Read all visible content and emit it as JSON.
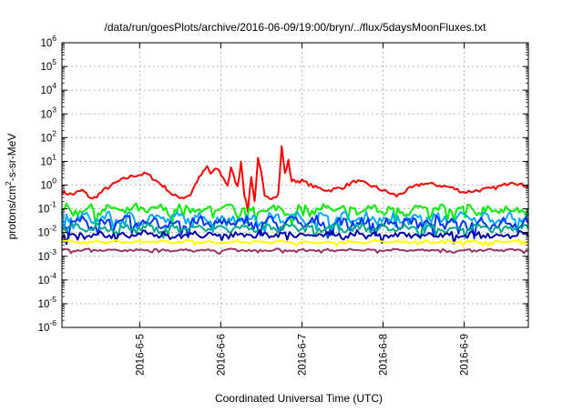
{
  "chart_data": {
    "type": "line",
    "title": "/data/run/goesPlots/archive/2016-06-09/19:00/bryn/../flux/5daysMoonFluxes.txt",
    "xlabel": "Coordinated Universal Time (UTC)",
    "ylabel": "protons/cm²-s-sr-MeV",
    "ylabel_parts": {
      "pre": "protons/cm",
      "sup": "2",
      "post": "-s-sr-MeV"
    },
    "y_scale": "log",
    "ylim": [
      1e-06,
      1000000.0
    ],
    "y_ticks": [
      {
        "base": "10",
        "exp": "-6",
        "value": 1e-06
      },
      {
        "base": "10",
        "exp": "-5",
        "value": 1e-05
      },
      {
        "base": "10",
        "exp": "-4",
        "value": 0.0001
      },
      {
        "base": "10",
        "exp": "-3",
        "value": 0.001
      },
      {
        "base": "10",
        "exp": "-2",
        "value": 0.01
      },
      {
        "base": "10",
        "exp": "-1",
        "value": 0.1
      },
      {
        "base": "10",
        "exp": "0",
        "value": 1.0
      },
      {
        "base": "10",
        "exp": "1",
        "value": 10.0
      },
      {
        "base": "10",
        "exp": "2",
        "value": 100.0
      },
      {
        "base": "10",
        "exp": "3",
        "value": 1000.0
      },
      {
        "base": "10",
        "exp": "4",
        "value": 10000.0
      },
      {
        "base": "10",
        "exp": "5",
        "value": 100000.0
      },
      {
        "base": "10",
        "exp": "6",
        "value": 1000000.0
      }
    ],
    "xlim": [
      "2016-06-04 01:00",
      "2016-06-09 19:00"
    ],
    "x_ticks": [
      {
        "label": "2016-6-5",
        "date": "2016-06-05 00:00"
      },
      {
        "label": "2016-6-6",
        "date": "2016-06-06 00:00"
      },
      {
        "label": "2016-6-7",
        "date": "2016-06-07 00:00"
      },
      {
        "label": "2016-6-8",
        "date": "2016-06-08 00:00"
      },
      {
        "label": "2016-6-9",
        "date": "2016-06-09 00:00"
      }
    ],
    "grid": true,
    "legend": "none",
    "series": [
      {
        "color": "#ff0000",
        "points": [
          [
            "2016-06-04 01:00",
            0.5
          ],
          [
            "2016-06-04 04:00",
            0.4
          ],
          [
            "2016-06-04 07:00",
            0.6
          ],
          [
            "2016-06-04 10:00",
            0.25
          ],
          [
            "2016-06-04 14:00",
            0.7
          ],
          [
            "2016-06-04 18:00",
            1.5
          ],
          [
            "2016-06-04 22:00",
            2.5
          ],
          [
            "2016-06-05 02:00",
            3.0
          ],
          [
            "2016-06-05 05:00",
            1.5
          ],
          [
            "2016-06-05 08:00",
            0.7
          ],
          [
            "2016-06-05 10:00",
            0.35
          ],
          [
            "2016-06-05 13:00",
            0.3
          ],
          [
            "2016-06-05 15:00",
            0.4
          ],
          [
            "2016-06-05 17:00",
            1.5
          ],
          [
            "2016-06-05 20:00",
            6.0
          ],
          [
            "2016-06-05 21:00",
            3.0
          ],
          [
            "2016-06-05 23:00",
            5.0
          ],
          [
            "2016-06-06 02:00",
            1.0
          ],
          [
            "2016-06-06 03:00",
            5.0
          ],
          [
            "2016-06-06 05:00",
            0.8
          ],
          [
            "2016-06-06 06:00",
            10.0
          ],
          [
            "2016-06-06 07:00",
            0.4
          ],
          [
            "2016-06-06 08:00",
            0.08
          ],
          [
            "2016-06-06 09:00",
            2.5
          ],
          [
            "2016-06-06 10:00",
            0.2
          ],
          [
            "2016-06-06 11:00",
            12.0
          ],
          [
            "2016-06-06 12:00",
            3.0
          ],
          [
            "2016-06-06 13:00",
            0.3
          ],
          [
            "2016-06-06 15:00",
            0.3
          ],
          [
            "2016-06-06 16:00",
            0.35
          ],
          [
            "2016-06-06 17:00",
            0.4
          ],
          [
            "2016-06-06 18:00",
            40.0
          ],
          [
            "2016-06-06 19:00",
            3.0
          ],
          [
            "2016-06-06 20:00",
            10.0
          ],
          [
            "2016-06-06 21:00",
            1.5
          ],
          [
            "2016-06-07 00:00",
            1.5
          ],
          [
            "2016-06-07 04:00",
            0.8
          ],
          [
            "2016-06-07 08:00",
            0.6
          ],
          [
            "2016-06-07 12:00",
            0.8
          ],
          [
            "2016-06-07 16:00",
            1.5
          ],
          [
            "2016-06-07 20:00",
            1.0
          ],
          [
            "2016-06-08 00:00",
            0.6
          ],
          [
            "2016-06-08 04:00",
            0.35
          ],
          [
            "2016-06-08 08:00",
            0.7
          ],
          [
            "2016-06-08 12:00",
            1.2
          ],
          [
            "2016-06-08 16:00",
            1.0
          ],
          [
            "2016-06-08 20:00",
            0.8
          ],
          [
            "2016-06-09 00:00",
            0.5
          ],
          [
            "2016-06-09 04:00",
            0.6
          ],
          [
            "2016-06-09 08:00",
            0.7
          ],
          [
            "2016-06-09 12:00",
            1.0
          ],
          [
            "2016-06-09 14:00",
            1.5
          ],
          [
            "2016-06-09 17:00",
            1.0
          ],
          [
            "2016-06-09 19:00",
            0.9
          ]
        ]
      },
      {
        "color": "#00ee00",
        "level": 0.09,
        "spread": 0.35
      },
      {
        "color": "#00aaff",
        "level": 0.04,
        "spread": 0.35
      },
      {
        "color": "#0033ff",
        "level": 0.025,
        "spread": 0.4
      },
      {
        "color": "#00aa88",
        "level": 0.015,
        "spread": 0.25
      },
      {
        "color": "#0000aa",
        "level": 0.008,
        "spread": 0.25
      },
      {
        "color": "#ffff00",
        "level": 0.004,
        "spread": 0.1
      },
      {
        "color": "#993366",
        "level": 0.0018,
        "spread": 0.08
      }
    ]
  }
}
